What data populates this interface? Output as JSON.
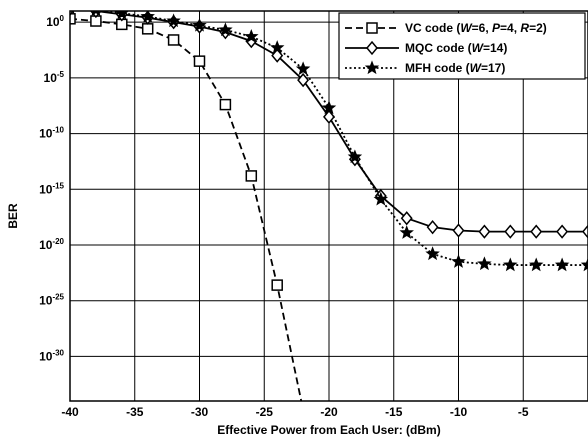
{
  "chart_data": {
    "type": "line",
    "xlabel": "Effective Power from Each User: (dBm)",
    "ylabel": "BER",
    "xlim": [
      -40,
      0
    ],
    "ylim_log10": [
      -34,
      1
    ],
    "y_scale": "log",
    "grid": true,
    "legend_position": "top-right",
    "x_ticks": [
      -40,
      -35,
      -30,
      -25,
      -20,
      -15,
      -10,
      -5
    ],
    "y_ticks": [
      {
        "base": "10",
        "exp": "0",
        "log10": 0
      },
      {
        "base": "10",
        "exp": "-5",
        "log10": -5
      },
      {
        "base": "10",
        "exp": "-10",
        "log10": -10
      },
      {
        "base": "10",
        "exp": "-15",
        "log10": -15
      },
      {
        "base": "10",
        "exp": "-20",
        "log10": -20
      },
      {
        "base": "10",
        "exp": "-25",
        "log10": -25
      },
      {
        "base": "10",
        "exp": "-30",
        "log10": -30
      }
    ],
    "series": [
      {
        "name": "VC code (W=6, P=4, R=2)",
        "legend_parts": [
          {
            "t": "VC code (",
            "i": false
          },
          {
            "t": "W",
            "i": true
          },
          {
            "t": "=6, ",
            "i": false
          },
          {
            "t": "P",
            "i": true
          },
          {
            "t": "=4, ",
            "i": false
          },
          {
            "t": "R",
            "i": true
          },
          {
            "t": "=2)",
            "i": false
          }
        ],
        "marker": "square",
        "dash": "dashed",
        "x": [
          -40,
          -38,
          -36,
          -34,
          -32,
          -30,
          -28,
          -26,
          -24,
          -22,
          -21.5
        ],
        "log10_ber": [
          0.3,
          0.1,
          -0.2,
          -0.6,
          -1.6,
          -3.5,
          -7.4,
          -13.8,
          -23.6,
          -34.8,
          -35.5
        ]
      },
      {
        "name": "MQC code (W=14)",
        "legend_parts": [
          {
            "t": "MQC code (",
            "i": false
          },
          {
            "t": "W",
            "i": true
          },
          {
            "t": "=14)",
            "i": false
          }
        ],
        "marker": "diamond",
        "dash": "solid",
        "x": [
          -40,
          -38,
          -36,
          -34,
          -32,
          -30,
          -28,
          -26,
          -24,
          -22,
          -20,
          -18,
          -16,
          -14,
          -12,
          -10,
          -8,
          -6,
          -4,
          -2,
          0
        ],
        "log10_ber": [
          1.2,
          1.0,
          0.7,
          0.4,
          0.0,
          -0.4,
          -0.9,
          -1.7,
          -3.0,
          -5.2,
          -8.5,
          -12.3,
          -15.6,
          -17.6,
          -18.4,
          -18.7,
          -18.8,
          -18.8,
          -18.8,
          -18.8,
          -18.8
        ]
      },
      {
        "name": "MFH code (W=17)",
        "legend_parts": [
          {
            "t": "MFH code (",
            "i": false
          },
          {
            "t": "W",
            "i": true
          },
          {
            "t": "=17)",
            "i": false
          }
        ],
        "marker": "star",
        "dash": "dotted",
        "x": [
          -40,
          -38,
          -36,
          -34,
          -32,
          -30,
          -28,
          -26,
          -24,
          -22,
          -20,
          -18,
          -16,
          -14,
          -12,
          -10,
          -8,
          -6,
          -4,
          -2,
          0
        ],
        "log10_ber": [
          1.3,
          1.1,
          0.8,
          0.5,
          0.1,
          -0.3,
          -0.7,
          -1.3,
          -2.3,
          -4.2,
          -7.7,
          -12.1,
          -15.9,
          -18.9,
          -20.8,
          -21.5,
          -21.7,
          -21.8,
          -21.8,
          -21.8,
          -21.8
        ]
      }
    ]
  }
}
